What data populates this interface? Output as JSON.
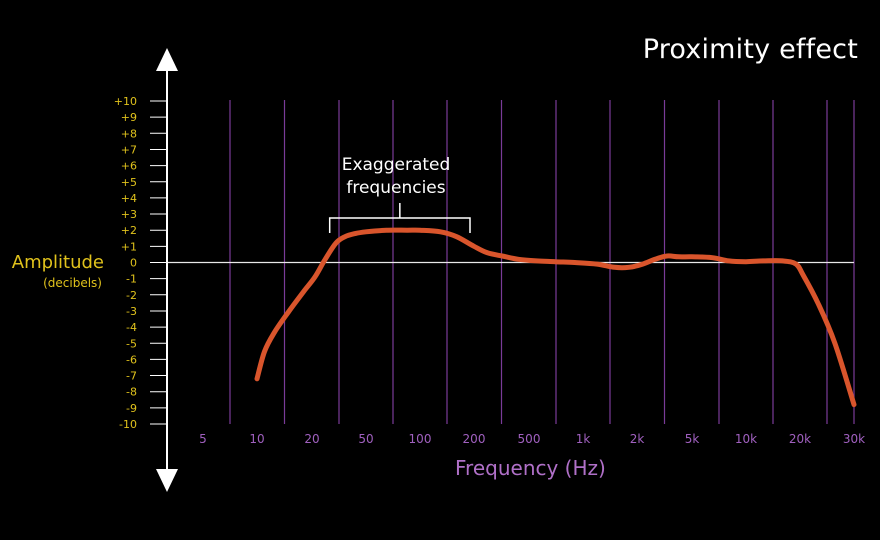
{
  "chart_data": {
    "type": "line",
    "title": "Proximity effect",
    "ylabel": "Amplitude",
    "ylabel_unit": "(decibels)",
    "xlabel": "Frequency (Hz)",
    "x_scale": "log",
    "xlim": [
      3,
      30000
    ],
    "ylim": [
      -10,
      10
    ],
    "grid": "vertical",
    "x_ticks": [
      {
        "label": "5",
        "value": 5
      },
      {
        "label": "10",
        "value": 10
      },
      {
        "label": "20",
        "value": 20
      },
      {
        "label": "50",
        "value": 50
      },
      {
        "label": "100",
        "value": 100
      },
      {
        "label": "200",
        "value": 200
      },
      {
        "label": "500",
        "value": 500
      },
      {
        "label": "1k",
        "value": 1000
      },
      {
        "label": "2k",
        "value": 2000
      },
      {
        "label": "5k",
        "value": 5000
      },
      {
        "label": "10k",
        "value": 10000
      },
      {
        "label": "20k",
        "value": 20000
      },
      {
        "label": "30k",
        "value": 30000
      }
    ],
    "y_ticks": [
      "+10",
      "+9",
      "+8",
      "+7",
      "+6",
      "+5",
      "+4",
      "+3",
      "+2",
      "+1",
      "0",
      "-1",
      "-2",
      "-3",
      "-4",
      "-5",
      "-6",
      "-7",
      "-8",
      "-9",
      "-10"
    ],
    "annotation": {
      "lines": [
        "Exaggerated",
        "frequencies"
      ],
      "x_from": 27,
      "x_to": 190
    },
    "series": [
      {
        "color": "#d9552c",
        "x": [
          10,
          11,
          12.5,
          15,
          18,
          21,
          25,
          30,
          35,
          42,
          50,
          65,
          85,
          100,
          130,
          160,
          200,
          250,
          320,
          420,
          550,
          700,
          900,
          1200,
          1500,
          1800,
          2200,
          2700,
          3300,
          4000,
          5000,
          6500,
          8000,
          10000,
          12500,
          16000,
          19000,
          20500,
          23000,
          26000,
          30000
        ],
        "y": [
          -7.2,
          -5.5,
          -4.3,
          -3.0,
          -1.8,
          -0.9,
          0.2,
          1.2,
          1.6,
          1.8,
          1.9,
          2.0,
          2.0,
          2.0,
          1.9,
          1.6,
          1.0,
          0.6,
          0.4,
          0.2,
          0.1,
          0.05,
          0.0,
          -0.1,
          -0.3,
          -0.3,
          -0.1,
          0.2,
          0.4,
          0.35,
          0.35,
          0.3,
          0.1,
          0.05,
          0.1,
          0.1,
          -0.1,
          -0.8,
          -2.6,
          -5.0,
          -8.8
        ]
      }
    ]
  }
}
